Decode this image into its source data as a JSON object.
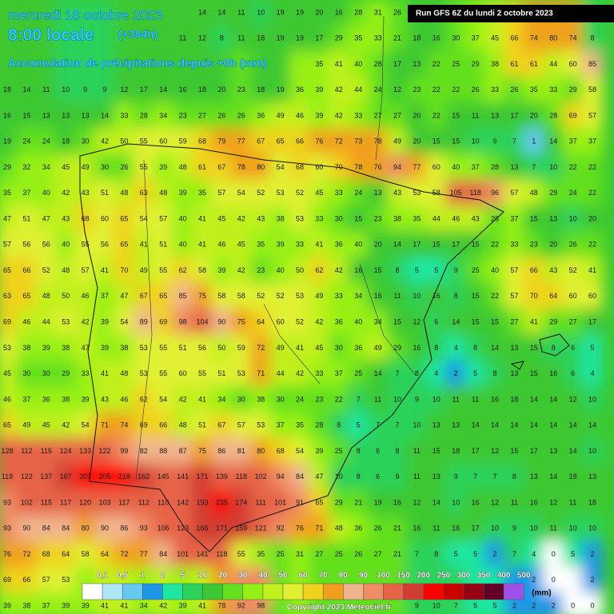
{
  "header": {
    "date": "mercredi 18 octobre 2023",
    "time": "8:00 locale",
    "lead": "(+384h)",
    "product": "Accumulation de précipitations depuis +0h (mm)",
    "run": "Run GFS 6Z du lundi 2 octobre 2023"
  },
  "grid": {
    "rows": [
      [
        null,
        null,
        null,
        null,
        null,
        null,
        null,
        null,
        null,
        null,
        14,
        14,
        11,
        10,
        19,
        19,
        20,
        16,
        28,
        31,
        26,
        null,
        null,
        null,
        null,
        null,
        null,
        null,
        null,
        null,
        null
      ],
      [
        null,
        null,
        null,
        null,
        null,
        null,
        null,
        null,
        null,
        11,
        12,
        8,
        11,
        18,
        19,
        19,
        17,
        29,
        35,
        33,
        21,
        18,
        16,
        30,
        37,
        45,
        66,
        74,
        80,
        74,
        8
      ],
      [
        null,
        null,
        null,
        null,
        null,
        null,
        null,
        null,
        null,
        null,
        null,
        null,
        null,
        null,
        null,
        null,
        35,
        41,
        40,
        28,
        17,
        13,
        22,
        25,
        29,
        38,
        61,
        61,
        44,
        60,
        85
      ],
      [
        18,
        14,
        11,
        10,
        9,
        9,
        12,
        17,
        14,
        16,
        18,
        20,
        23,
        18,
        19,
        36,
        39,
        42,
        44,
        24,
        12,
        23,
        22,
        22,
        26,
        33,
        26,
        35,
        33,
        29,
        58
      ],
      [
        16,
        15,
        13,
        13,
        13,
        14,
        33,
        28,
        34,
        23,
        27,
        26,
        26,
        36,
        49,
        46,
        39,
        42,
        33,
        27,
        27,
        20,
        22,
        15,
        11,
        13,
        17,
        20,
        28,
        69,
        57
      ],
      [
        19,
        24,
        24,
        18,
        30,
        42,
        50,
        55,
        60,
        59,
        68,
        79,
        77,
        67,
        65,
        66,
        76,
        72,
        73,
        78,
        49,
        20,
        15,
        15,
        10,
        9,
        7,
        1,
        14,
        37,
        37
      ],
      [
        29,
        32,
        34,
        45,
        49,
        30,
        26,
        55,
        39,
        48,
        61,
        67,
        78,
        80,
        54,
        68,
        60,
        70,
        78,
        76,
        94,
        77,
        60,
        40,
        37,
        28,
        13,
        7,
        10,
        22,
        22
      ],
      [
        35,
        37,
        40,
        42,
        43,
        51,
        48,
        63,
        48,
        39,
        35,
        57,
        54,
        52,
        53,
        52,
        45,
        33,
        24,
        13,
        43,
        53,
        58,
        105,
        118,
        96,
        57,
        48,
        29,
        24,
        22
      ],
      [
        47,
        51,
        47,
        43,
        68,
        60,
        65,
        54,
        57,
        40,
        41,
        45,
        42,
        43,
        38,
        53,
        33,
        30,
        15,
        23,
        38,
        35,
        44,
        46,
        43,
        26,
        37,
        15,
        13,
        10,
        20
      ],
      [
        57,
        56,
        56,
        40,
        55,
        56,
        65,
        41,
        51,
        40,
        41,
        46,
        45,
        35,
        39,
        33,
        41,
        36,
        40,
        20,
        14,
        17,
        15,
        17,
        15,
        22,
        33,
        23,
        20,
        26,
        22
      ],
      [
        65,
        66,
        52,
        48,
        57,
        41,
        70,
        49,
        55,
        62,
        58,
        39,
        42,
        23,
        40,
        50,
        62,
        42,
        16,
        15,
        8,
        5,
        5,
        9,
        25,
        40,
        57,
        66,
        43,
        52,
        41
      ],
      [
        63,
        65,
        48,
        50,
        46,
        37,
        47,
        67,
        65,
        85,
        75,
        58,
        58,
        52,
        52,
        53,
        49,
        33,
        34,
        16,
        11,
        10,
        16,
        8,
        15,
        22,
        57,
        70,
        64,
        60,
        60
      ],
      [
        69,
        46,
        44,
        53,
        42,
        39,
        54,
        89,
        69,
        98,
        104,
        90,
        75,
        64,
        60,
        52,
        42,
        36,
        40,
        34,
        15,
        12,
        6,
        14,
        15,
        15,
        27,
        41,
        29,
        27,
        17
      ],
      [
        53,
        38,
        39,
        38,
        47,
        39,
        38,
        53,
        55,
        51,
        56,
        50,
        59,
        72,
        49,
        41,
        45,
        30,
        36,
        49,
        29,
        16,
        8,
        4,
        8,
        14,
        13,
        15,
        8,
        6,
        5
      ],
      [
        45,
        30,
        30,
        29,
        33,
        41,
        48,
        53,
        55,
        60,
        55,
        51,
        53,
        71,
        44,
        42,
        33,
        37,
        25,
        14,
        7,
        8,
        4,
        2,
        5,
        8,
        13,
        15,
        16,
        6,
        4
      ],
      [
        46,
        37,
        36,
        38,
        39,
        43,
        46,
        62,
        54,
        42,
        41,
        34,
        30,
        38,
        30,
        24,
        23,
        22,
        7,
        11,
        10,
        9,
        10,
        11,
        11,
        16,
        18,
        14,
        14,
        12,
        10
      ],
      [
        65,
        49,
        45,
        42,
        54,
        71,
        74,
        69,
        66,
        48,
        51,
        67,
        57,
        53,
        37,
        35,
        28,
        8,
        5,
        7,
        7,
        10,
        13,
        13,
        14,
        14,
        14,
        14,
        14,
        14,
        14
      ],
      [
        128,
        112,
        115,
        124,
        133,
        122,
        99,
        82,
        88,
        87,
        75,
        86,
        81,
        80,
        68,
        54,
        39,
        25,
        8,
        6,
        8,
        11,
        15,
        18,
        17,
        12,
        15,
        17,
        13,
        14,
        10
      ],
      [
        119,
        122,
        137,
        167,
        207,
        205,
        218,
        162,
        145,
        141,
        171,
        139,
        118,
        102,
        94,
        84,
        47,
        10,
        8,
        6,
        9,
        11,
        13,
        9,
        7,
        7,
        8,
        13,
        14,
        18,
        13
      ],
      [
        93,
        102,
        115,
        117,
        120,
        103,
        117,
        112,
        110,
        142,
        193,
        235,
        174,
        111,
        101,
        91,
        65,
        29,
        21,
        19,
        16,
        12,
        14,
        10,
        16,
        12,
        11,
        16,
        12,
        11,
        18
      ],
      [
        93,
        90,
        84,
        84,
        80,
        90,
        86,
        93,
        106,
        123,
        166,
        171,
        159,
        121,
        92,
        76,
        71,
        48,
        36,
        26,
        21,
        16,
        11,
        16,
        17,
        10,
        9,
        10,
        11,
        10,
        10
      ],
      [
        76,
        72,
        68,
        64,
        58,
        64,
        72,
        77,
        84,
        101,
        141,
        118,
        55,
        35,
        25,
        31,
        27,
        25,
        26,
        27,
        21,
        7,
        8,
        5,
        5,
        2,
        7,
        4,
        0,
        5,
        2
      ],
      [
        69,
        66,
        57,
        53,
        null,
        null,
        null,
        null,
        null,
        null,
        null,
        null,
        null,
        null,
        null,
        null,
        null,
        null,
        null,
        null,
        null,
        null,
        null,
        null,
        null,
        null,
        null,
        2,
        0,
        null,
        2
      ],
      [
        39,
        38,
        37,
        39,
        39,
        41,
        41,
        34,
        42,
        39,
        41,
        78,
        92,
        98,
        null,
        null,
        null,
        null,
        null,
        null,
        null,
        9,
        10,
        7,
        5,
        5,
        2,
        2,
        2,
        0,
        0
      ]
    ]
  },
  "legend": {
    "unit": "(mm)",
    "steps": [
      {
        "label": "0,1",
        "color": "#ffffff"
      },
      {
        "label": "0,5",
        "color": "#aee6f8"
      },
      {
        "label": "1",
        "color": "#64c8f0"
      },
      {
        "label": "2",
        "color": "#1e96e6"
      },
      {
        "label": "5",
        "color": "#1ee6a0"
      },
      {
        "label": "10",
        "color": "#2cd25a"
      },
      {
        "label": "20",
        "color": "#3cc832"
      },
      {
        "label": "30",
        "color": "#64e01e"
      },
      {
        "label": "40",
        "color": "#96f014"
      },
      {
        "label": "50",
        "color": "#c0f01e"
      },
      {
        "label": "60",
        "color": "#e0f032"
      },
      {
        "label": "70",
        "color": "#f0d21e"
      },
      {
        "label": "80",
        "color": "#f0a01e"
      },
      {
        "label": "90",
        "color": "#f0b48c"
      },
      {
        "label": "100",
        "color": "#f08c64"
      },
      {
        "label": "150",
        "color": "#e66446"
      },
      {
        "label": "200",
        "color": "#d23c32"
      },
      {
        "label": "250",
        "color": "#ff0000"
      },
      {
        "label": "300",
        "color": "#c80000"
      },
      {
        "label": "350",
        "color": "#960014"
      },
      {
        "label": "400",
        "color": "#640028"
      },
      {
        "label": "500",
        "color": "#a050e6"
      }
    ]
  },
  "footer": {
    "copyright": "Copyright 2023 Meteociel.fr"
  }
}
